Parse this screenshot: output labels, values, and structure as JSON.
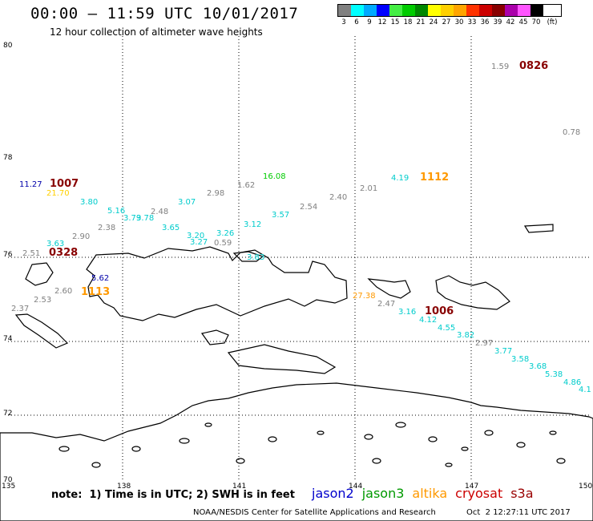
{
  "header": {
    "title": "00:00 – 11:59 UTC 10/01/2017",
    "subtitle": "12 hour collection of altimeter wave heights"
  },
  "legend": {
    "unit": "(ft)",
    "items": [
      {
        "color": "#808080",
        "label": "3"
      },
      {
        "color": "#00ffff",
        "label": "6"
      },
      {
        "color": "#00aaff",
        "label": "9"
      },
      {
        "color": "#0000ff",
        "label": "12"
      },
      {
        "color": "#44ee44",
        "label": "15"
      },
      {
        "color": "#00cc00",
        "label": "18"
      },
      {
        "color": "#008800",
        "label": "21"
      },
      {
        "color": "#ffff00",
        "label": "24"
      },
      {
        "color": "#ffd000",
        "label": "27"
      },
      {
        "color": "#ffa500",
        "label": "30"
      },
      {
        "color": "#ff3300",
        "label": "33"
      },
      {
        "color": "#cc0000",
        "label": "36"
      },
      {
        "color": "#880000",
        "label": "39"
      },
      {
        "color": "#aa00aa",
        "label": "42"
      },
      {
        "color": "#ff55ff",
        "label": "45"
      },
      {
        "color": "#000000",
        "label": "70"
      }
    ]
  },
  "axes": {
    "lat_labels": [
      "80",
      "78",
      "76",
      "74",
      "72",
      "70"
    ],
    "lon_labels": [
      "135",
      "138",
      "141",
      "144",
      "147",
      "150"
    ]
  },
  "footer": {
    "note": "note:  1) Time is in UTC; 2) SWH is in feet",
    "satellites": [
      {
        "name": "jason2",
        "color": "#0000cc"
      },
      {
        "name": "jason3",
        "color": "#009900"
      },
      {
        "name": "altika",
        "color": "#ff9900"
      },
      {
        "name": "cryosat",
        "color": "#cc0000"
      },
      {
        "name": "s3a",
        "color": "#990000"
      }
    ],
    "credit": "NOAA/NESDIS Center for Satellite Applications and Research",
    "date": "Oct  2 12:27:11 UTC 2017"
  },
  "wave_labels": [
    {
      "text": "1.59",
      "color": "#808080"
    },
    {
      "text": "0826",
      "color": "#880000",
      "time": true
    },
    {
      "text": "0.78",
      "color": "#808080"
    },
    {
      "text": "11.27",
      "color": "#0000aa"
    },
    {
      "text": "1007",
      "color": "#880000",
      "time": true
    },
    {
      "text": "21.70",
      "color": "#ffd000"
    },
    {
      "text": "16.08",
      "color": "#00cc00"
    },
    {
      "text": "4.19",
      "color": "#00cccc"
    },
    {
      "text": "1112",
      "color": "#ff9900",
      "time": true
    },
    {
      "text": "3.80",
      "color": "#00cccc"
    },
    {
      "text": "5.16",
      "color": "#00cccc"
    },
    {
      "text": "3.79",
      "color": "#00cccc"
    },
    {
      "text": "3.78",
      "color": "#00cccc"
    },
    {
      "text": "2.48",
      "color": "#808080"
    },
    {
      "text": "3.07",
      "color": "#00cccc"
    },
    {
      "text": "2.98",
      "color": "#808080"
    },
    {
      "text": "1.62",
      "color": "#808080"
    },
    {
      "text": "2.01",
      "color": "#808080"
    },
    {
      "text": "2.40",
      "color": "#808080"
    },
    {
      "text": "2.54",
      "color": "#808080"
    },
    {
      "text": "3.57",
      "color": "#00cccc"
    },
    {
      "text": "3.12",
      "color": "#00cccc"
    },
    {
      "text": "3.65",
      "color": "#00cccc"
    },
    {
      "text": "2.38",
      "color": "#808080"
    },
    {
      "text": "2.90",
      "color": "#808080"
    },
    {
      "text": "3.20",
      "color": "#00cccc"
    },
    {
      "text": "3.26",
      "color": "#00cccc"
    },
    {
      "text": "3.27",
      "color": "#00cccc"
    },
    {
      "text": "0.59",
      "color": "#808080"
    },
    {
      "text": "3.63",
      "color": "#00cccc"
    },
    {
      "text": "2.51",
      "color": "#808080"
    },
    {
      "text": "0328",
      "color": "#880000",
      "time": true
    },
    {
      "text": "3.83",
      "color": "#00cccc"
    },
    {
      "text": "5.62",
      "color": "#0000aa"
    },
    {
      "text": "1113",
      "color": "#ff9900",
      "time": true
    },
    {
      "text": "2.60",
      "color": "#808080"
    },
    {
      "text": "2.53",
      "color": "#808080"
    },
    {
      "text": "2.37",
      "color": "#808080"
    },
    {
      "text": "27.38",
      "color": "#ff9900"
    },
    {
      "text": "2.47",
      "color": "#808080"
    },
    {
      "text": "3.16",
      "color": "#00cccc"
    },
    {
      "text": "1006",
      "color": "#880000",
      "time": true
    },
    {
      "text": "4.12",
      "color": "#00cccc"
    },
    {
      "text": "4.55",
      "color": "#00cccc"
    },
    {
      "text": "3.82",
      "color": "#00cccc"
    },
    {
      "text": "2.97",
      "color": "#808080"
    },
    {
      "text": "3.77",
      "color": "#00cccc"
    },
    {
      "text": "3.58",
      "color": "#00cccc"
    },
    {
      "text": "3.68",
      "color": "#00cccc"
    },
    {
      "text": "5.38",
      "color": "#00cccc"
    },
    {
      "text": "4.86",
      "color": "#00cccc"
    },
    {
      "text": "4.1",
      "color": "#00cccc"
    }
  ]
}
